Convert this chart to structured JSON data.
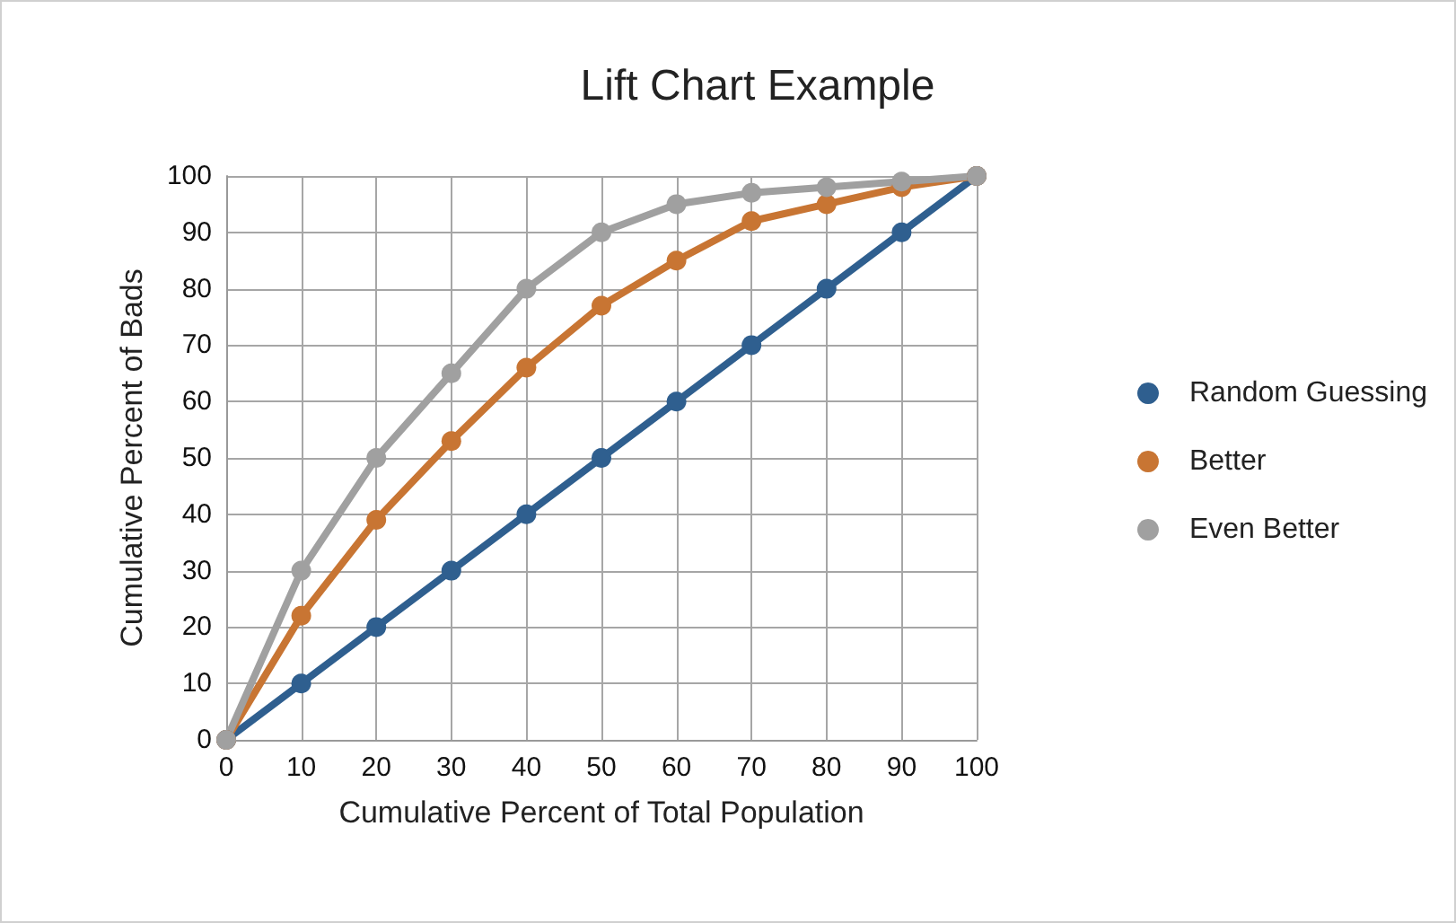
{
  "chart_data": {
    "type": "line",
    "title": "Lift Chart Example",
    "xlabel": "Cumulative Percent of Total Population",
    "ylabel": "Cumulative Percent of Bads",
    "x": [
      0,
      10,
      20,
      30,
      40,
      50,
      60,
      70,
      80,
      90,
      100
    ],
    "series": [
      {
        "name": "Random Guessing",
        "color": "#2f5f8f",
        "values": [
          0,
          10,
          20,
          30,
          40,
          50,
          60,
          70,
          80,
          90,
          100
        ]
      },
      {
        "name": "Better",
        "color": "#c87533",
        "values": [
          0,
          22,
          39,
          53,
          66,
          77,
          85,
          92,
          95,
          98,
          100
        ]
      },
      {
        "name": "Even Better",
        "color": "#a0a0a0",
        "values": [
          0,
          30,
          50,
          65,
          80,
          90,
          95,
          97,
          98,
          99,
          100
        ]
      }
    ],
    "xlim": [
      0,
      100
    ],
    "xticks": [
      0,
      10,
      20,
      30,
      40,
      50,
      60,
      70,
      80,
      90,
      100
    ],
    "ylim": [
      0,
      100
    ],
    "yticks": [
      0,
      10,
      20,
      30,
      40,
      50,
      60,
      70,
      80,
      90,
      100
    ],
    "grid": true,
    "legend": "right",
    "marker": "circle",
    "line_style": "solid"
  }
}
